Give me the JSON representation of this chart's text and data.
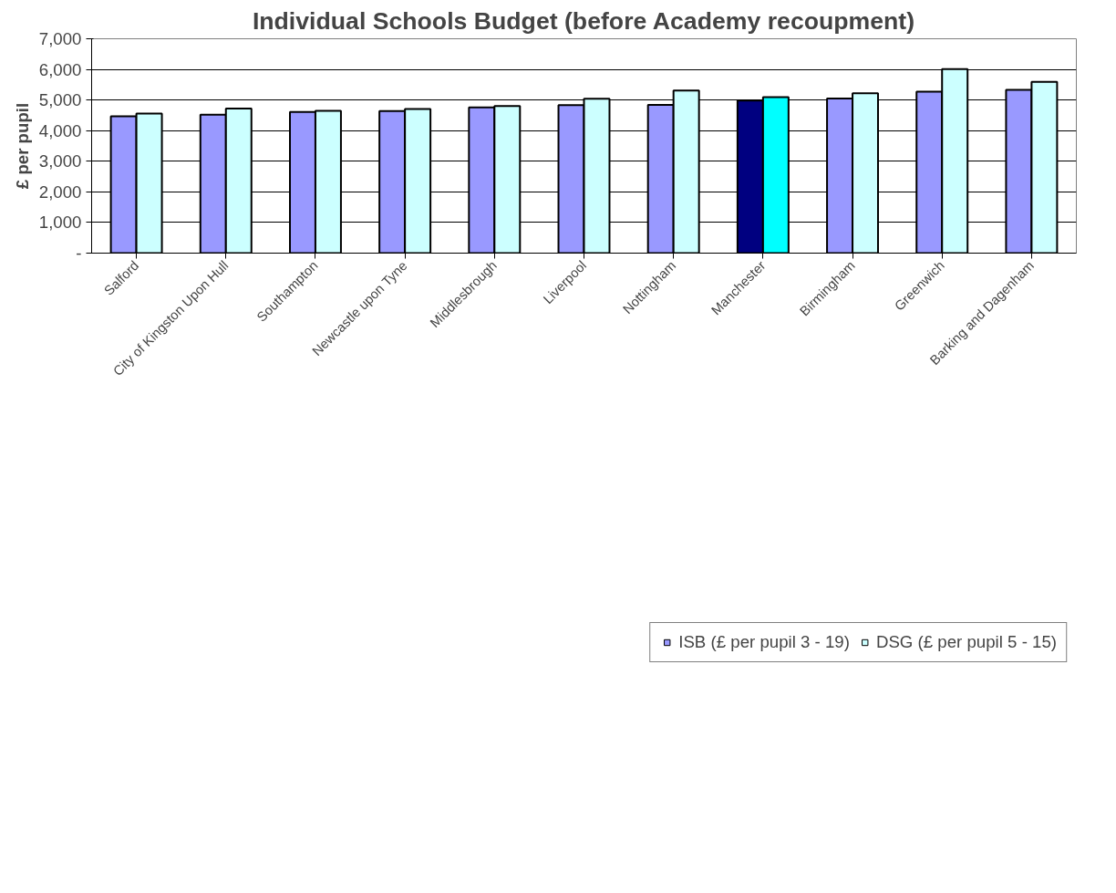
{
  "chart_data": {
    "type": "bar",
    "title": "Individual Schools Budget (before Academy recoupment)",
    "ylabel": "£ per pupil",
    "categories": [
      "Salford",
      "City of Kingston Upon Hull",
      "Southampton",
      "Newcastle upon Tyne",
      "Middlesbrough",
      "Liverpool",
      "Nottingham",
      "Manchester",
      "Birmingham",
      "Greenwich",
      "Barking and Dagenham"
    ],
    "series": [
      {
        "name": "ISB (£ per pupil 3 - 19)",
        "color": "#9999ff",
        "colors": [
          "#9999ff",
          "#9999ff",
          "#9999ff",
          "#9999ff",
          "#9999ff",
          "#9999ff",
          "#9999ff",
          "#000080",
          "#9999ff",
          "#9999ff",
          "#9999ff"
        ],
        "values": [
          4470,
          4520,
          4610,
          4640,
          4760,
          4830,
          4840,
          4980,
          5050,
          5270,
          5330
        ]
      },
      {
        "name": "DSG (£ per pupil 5 - 15)",
        "color": "#ccffff",
        "colors": [
          "#ccffff",
          "#ccffff",
          "#ccffff",
          "#ccffff",
          "#ccffff",
          "#ccffff",
          "#ccffff",
          "#00ffff",
          "#ccffff",
          "#ccffff",
          "#ccffff"
        ],
        "values": [
          4560,
          4720,
          4650,
          4710,
          4800,
          5040,
          5310,
          5090,
          5220,
          6010,
          5590
        ]
      }
    ],
    "ylim": [
      0,
      7000
    ],
    "yticks": [
      {
        "value": 0,
        "label": "-"
      },
      {
        "value": 1000,
        "label": "1,000"
      },
      {
        "value": 2000,
        "label": "2,000"
      },
      {
        "value": 3000,
        "label": "3,000"
      },
      {
        "value": 4000,
        "label": "4,000"
      },
      {
        "value": 5000,
        "label": "5,000"
      },
      {
        "value": 6000,
        "label": "6,000"
      },
      {
        "value": 7000,
        "label": "7,000"
      }
    ],
    "grid": "y",
    "legend": "bottom"
  }
}
